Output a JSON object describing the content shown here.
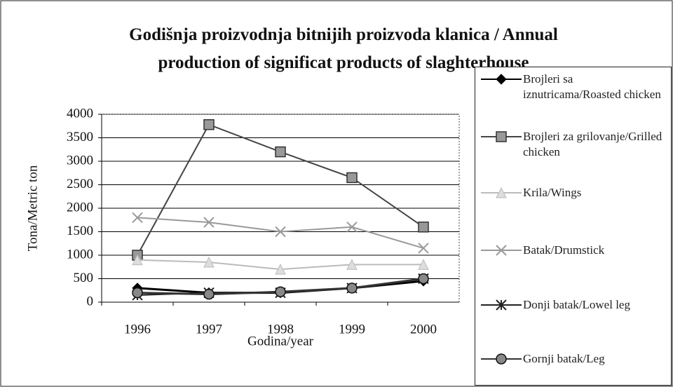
{
  "chart_data": {
    "type": "line",
    "title": "Godišnja proizvodnja bitnijih proizvoda klanica / Annual production of significat products of slaghterhouse",
    "x_label": "Godina/year",
    "y_label": "Tona/Metric ton",
    "categories": [
      "1996",
      "1997",
      "1998",
      "1999",
      "2000"
    ],
    "ylim": [
      0,
      4000
    ],
    "yticks": [
      0,
      500,
      1000,
      1500,
      2000,
      2500,
      3000,
      3500,
      4000
    ],
    "grid": true,
    "legend": "right",
    "series": [
      {
        "name": "Brojleri sa iznutricama/Roasted chicken",
        "color": "#000000",
        "marker": "diamond",
        "values": [
          300,
          200,
          200,
          300,
          450
        ]
      },
      {
        "name": "Brojleri za grilovanje/Grilled chicken",
        "color": "#444444",
        "marker": "square",
        "values": [
          1000,
          3780,
          3200,
          2650,
          1600
        ]
      },
      {
        "name": "Krila/Wings",
        "color": "#bbbbbb",
        "marker": "triangle",
        "values": [
          900,
          850,
          700,
          800,
          800
        ]
      },
      {
        "name": "Batak/Drumstick",
        "color": "#999999",
        "marker": "x",
        "values": [
          1800,
          1700,
          1500,
          1600,
          1150
        ]
      },
      {
        "name": "Donji batak/Lowel leg",
        "color": "#222222",
        "marker": "star",
        "values": [
          150,
          200,
          200,
          300,
          500
        ]
      },
      {
        "name": "Gornji batak/Leg",
        "color": "#333333",
        "marker": "circle",
        "values": [
          200,
          170,
          220,
          300,
          500
        ]
      }
    ]
  }
}
